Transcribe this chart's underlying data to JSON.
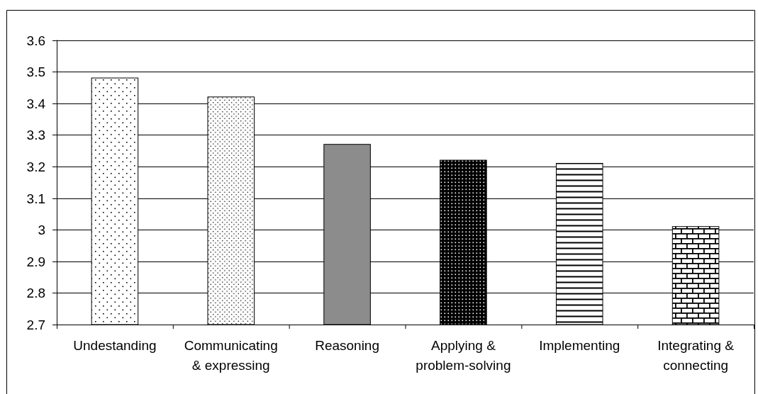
{
  "chart_data": {
    "type": "bar",
    "categories": [
      "Undestanding",
      "Communicating & expressing",
      "Reasoning",
      "Applying & problem-solving",
      "Implementing",
      "Integrating & connecting"
    ],
    "values": [
      3.48,
      3.42,
      3.27,
      3.22,
      3.21,
      3.01
    ],
    "colors": [
      "#000000",
      "#000000",
      "#8c8c8c",
      "#000000",
      "#000000",
      "#000000"
    ],
    "ylim": [
      2.7,
      3.6
    ],
    "yticks": [
      2.7,
      2.8,
      2.9,
      3,
      3.1,
      3.2,
      3.3,
      3.4,
      3.5,
      3.6
    ],
    "grid": "y"
  }
}
